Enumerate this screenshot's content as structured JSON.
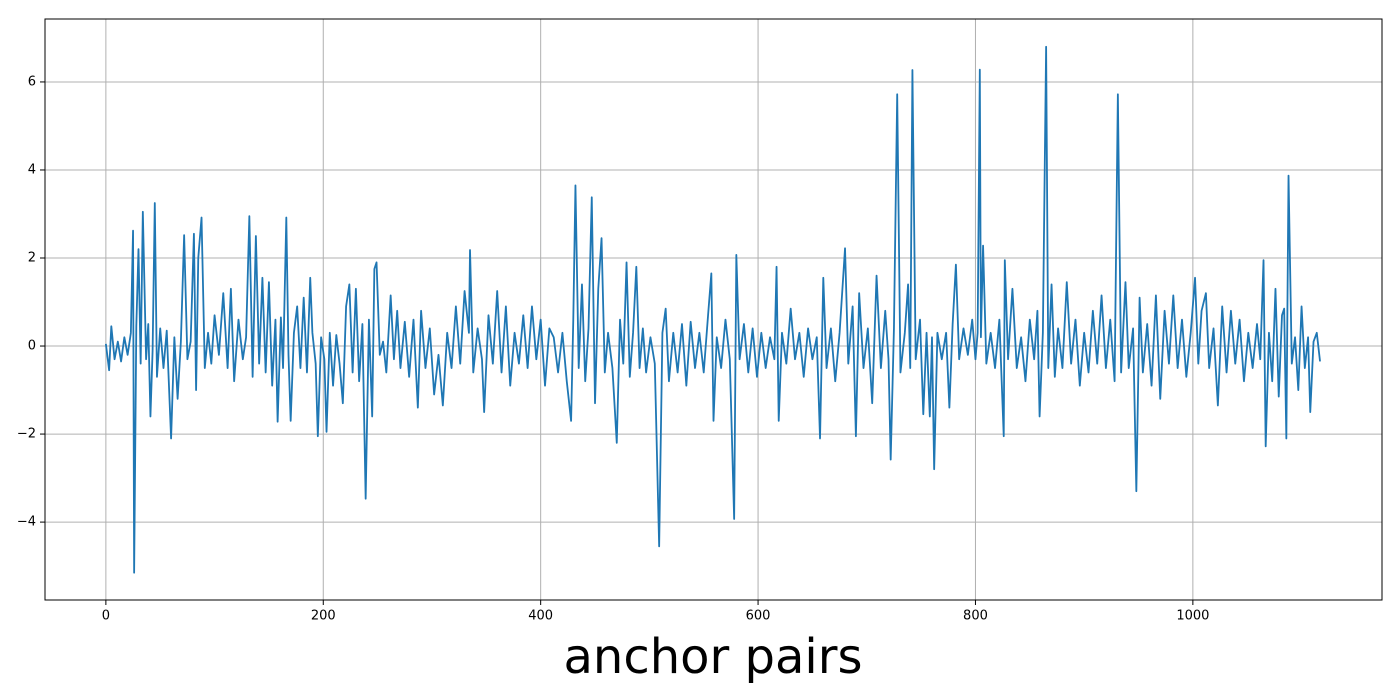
{
  "chart_data": {
    "type": "line",
    "xlabel": "anchor pairs",
    "color": "#1f77b4",
    "grid": true,
    "xlim": [
      -56,
      1174
    ],
    "ylim": [
      -5.77,
      7.43
    ],
    "xticks": [
      0,
      200,
      400,
      600,
      800,
      1000
    ],
    "yticks": [
      {
        "value": -4,
        "label": "−4"
      },
      {
        "value": -2,
        "label": "−2"
      },
      0,
      2,
      4,
      6
    ],
    "x": [
      0,
      3,
      5,
      8,
      11,
      14,
      17,
      20,
      23,
      25,
      26,
      28,
      30,
      32,
      34,
      37,
      39,
      41,
      43,
      45,
      47,
      50,
      53,
      56,
      60,
      63,
      66,
      69,
      72,
      75,
      78,
      81,
      83,
      85,
      88,
      91,
      94,
      97,
      100,
      104,
      108,
      112,
      115,
      118,
      122,
      126,
      129,
      132,
      135,
      138,
      141,
      144,
      147,
      150,
      153,
      156,
      158,
      161,
      163,
      166,
      168,
      170,
      173,
      176,
      179,
      182,
      185,
      188,
      190,
      193,
      195,
      198,
      201,
      203,
      206,
      209,
      212,
      215,
      218,
      221,
      224,
      227,
      230,
      233,
      236,
      239,
      242,
      245,
      247,
      249,
      252,
      255,
      258,
      262,
      265,
      268,
      271,
      275,
      279,
      283,
      287,
      290,
      294,
      298,
      302,
      306,
      310,
      314,
      318,
      322,
      326,
      330,
      334,
      335,
      338,
      342,
      346,
      348,
      352,
      356,
      360,
      364,
      368,
      372,
      376,
      380,
      384,
      388,
      392,
      396,
      400,
      404,
      408,
      412,
      416,
      420,
      424,
      428,
      430,
      432,
      435,
      438,
      441,
      444,
      447,
      450,
      453,
      456,
      459,
      462,
      466,
      470,
      473,
      476,
      479,
      482,
      485,
      488,
      491,
      494,
      497,
      501,
      505,
      509,
      512,
      515,
      518,
      522,
      526,
      530,
      534,
      538,
      542,
      546,
      550,
      554,
      557,
      559,
      562,
      566,
      570,
      574,
      578,
      580,
      583,
      587,
      591,
      595,
      599,
      603,
      607,
      611,
      615,
      617,
      619,
      622,
      626,
      630,
      634,
      638,
      642,
      646,
      650,
      654,
      657,
      660,
      663,
      667,
      671,
      675,
      680,
      683,
      687,
      690,
      693,
      697,
      701,
      705,
      709,
      713,
      717,
      720,
      722,
      725,
      728,
      731,
      735,
      738,
      740,
      742,
      745,
      749,
      752,
      755,
      758,
      760,
      762,
      765,
      769,
      773,
      776,
      779,
      782,
      785,
      789,
      793,
      797,
      800,
      802,
      804,
      805,
      807,
      810,
      814,
      818,
      822,
      826,
      827,
      830,
      834,
      838,
      842,
      846,
      850,
      854,
      857,
      859,
      862,
      865,
      867,
      870,
      873,
      876,
      880,
      884,
      888,
      892,
      896,
      900,
      904,
      908,
      912,
      916,
      920,
      924,
      928,
      931,
      934,
      938,
      941,
      945,
      948,
      951,
      954,
      958,
      962,
      966,
      970,
      974,
      978,
      982,
      986,
      990,
      994,
      998,
      1002,
      1005,
      1008,
      1012,
      1015,
      1019,
      1023,
      1027,
      1031,
      1035,
      1039,
      1043,
      1047,
      1051,
      1055,
      1059,
      1062,
      1065,
      1067,
      1070,
      1073,
      1076,
      1079,
      1082,
      1084,
      1086,
      1088,
      1091,
      1094,
      1097,
      1100,
      1103,
      1106,
      1108,
      1111,
      1114,
      1117
    ],
    "values": [
      0.05,
      -0.55,
      0.45,
      -0.3,
      0.1,
      -0.35,
      0.2,
      -0.2,
      0.3,
      2.62,
      -5.15,
      0.45,
      2.2,
      -0.4,
      3.05,
      -0.3,
      0.5,
      -1.6,
      -0.1,
      3.25,
      -0.7,
      0.4,
      -0.5,
      0.35,
      -2.1,
      0.2,
      -1.2,
      0.1,
      2.52,
      -0.3,
      0.1,
      2.55,
      -1.0,
      2.0,
      2.92,
      -0.5,
      0.3,
      -0.4,
      0.7,
      -0.2,
      1.2,
      -0.5,
      1.3,
      -0.8,
      0.6,
      -0.3,
      0.2,
      2.95,
      -0.7,
      2.5,
      -0.4,
      1.55,
      -0.6,
      1.45,
      -0.9,
      0.6,
      -1.72,
      0.65,
      -0.5,
      2.92,
      -0.2,
      -1.7,
      0.3,
      0.9,
      -0.5,
      1.1,
      -0.6,
      1.55,
      0.3,
      -0.4,
      -2.05,
      0.2,
      -0.3,
      -1.95,
      0.3,
      -0.9,
      0.25,
      -0.4,
      -1.3,
      0.9,
      1.4,
      -0.6,
      1.3,
      -0.8,
      0.5,
      -3.47,
      0.6,
      -1.6,
      1.75,
      1.9,
      -0.2,
      0.1,
      -0.6,
      1.15,
      -0.3,
      0.8,
      -0.5,
      0.55,
      -0.7,
      0.6,
      -1.4,
      0.8,
      -0.5,
      0.4,
      -1.1,
      -0.2,
      -1.35,
      0.3,
      -0.5,
      0.9,
      -0.4,
      1.25,
      0.3,
      2.18,
      -0.6,
      0.4,
      -0.3,
      -1.5,
      0.7,
      -0.4,
      1.25,
      -0.6,
      0.9,
      -0.9,
      0.3,
      -0.4,
      0.7,
      -0.5,
      0.9,
      -0.3,
      0.6,
      -0.9,
      0.4,
      0.2,
      -0.6,
      0.3,
      -0.8,
      -1.7,
      0.6,
      3.65,
      -0.5,
      1.4,
      -0.8,
      0.4,
      3.38,
      -1.3,
      1.3,
      2.45,
      -0.6,
      0.3,
      -0.5,
      -2.2,
      0.6,
      -0.4,
      1.9,
      -0.7,
      0.3,
      1.8,
      -0.5,
      0.4,
      -0.6,
      0.2,
      -0.4,
      -4.55,
      0.3,
      0.85,
      -0.8,
      0.3,
      -0.6,
      0.5,
      -0.9,
      0.55,
      -0.5,
      0.3,
      -0.6,
      0.7,
      1.65,
      -1.7,
      0.2,
      -0.5,
      0.6,
      -0.3,
      -3.93,
      2.07,
      -0.3,
      0.5,
      -0.6,
      0.4,
      -0.7,
      0.3,
      -0.5,
      0.2,
      -0.3,
      1.8,
      -1.7,
      0.3,
      -0.4,
      0.85,
      -0.3,
      0.3,
      -0.7,
      0.4,
      -0.3,
      0.2,
      -2.1,
      1.55,
      -0.5,
      0.4,
      -0.8,
      0.3,
      2.22,
      -0.4,
      0.9,
      -2.05,
      1.2,
      -0.5,
      0.4,
      -1.3,
      1.6,
      -0.5,
      0.8,
      -0.3,
      -2.58,
      0.4,
      5.72,
      -0.6,
      0.3,
      1.4,
      -0.5,
      6.27,
      -0.3,
      0.6,
      -1.55,
      0.3,
      -1.6,
      0.2,
      -2.8,
      0.3,
      -0.3,
      0.3,
      -1.4,
      0.5,
      1.85,
      -0.3,
      0.4,
      -0.2,
      0.6,
      -0.3,
      0.3,
      6.28,
      0.2,
      2.28,
      -0.4,
      0.3,
      -0.5,
      0.6,
      -2.05,
      1.95,
      -0.3,
      1.3,
      -0.5,
      0.2,
      -0.8,
      0.6,
      -0.3,
      0.8,
      -1.6,
      0.3,
      6.8,
      -0.5,
      1.4,
      -0.7,
      0.4,
      -0.5,
      1.45,
      -0.4,
      0.6,
      -0.9,
      0.3,
      -0.6,
      0.8,
      -0.4,
      1.15,
      -0.5,
      0.6,
      -0.8,
      5.72,
      -0.6,
      1.45,
      -0.5,
      0.4,
      -3.3,
      1.1,
      -0.6,
      0.5,
      -0.9,
      1.15,
      -1.2,
      0.8,
      -0.4,
      1.15,
      -0.5,
      0.6,
      -0.7,
      0.3,
      1.55,
      -0.4,
      0.8,
      1.2,
      -0.5,
      0.4,
      -1.35,
      0.9,
      -0.6,
      0.8,
      -0.4,
      0.6,
      -0.8,
      0.3,
      -0.5,
      0.5,
      -0.3,
      1.95,
      -2.28,
      0.3,
      -0.8,
      1.3,
      -1.15,
      0.7,
      0.85,
      -2.1,
      3.87,
      -0.4,
      0.2,
      -1.0,
      0.9,
      -0.5,
      0.2,
      -1.5,
      0.1,
      0.3,
      -0.35
    ]
  }
}
